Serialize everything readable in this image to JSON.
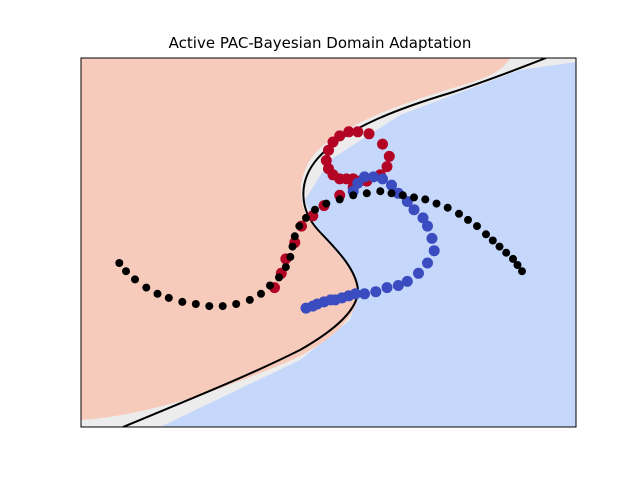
{
  "chart_data": {
    "type": "scatter",
    "title": "Active PAC-Bayesian Domain Adaptation",
    "xlabel": "",
    "ylabel": "",
    "axes_ticks": "none",
    "grid": false,
    "legend": "none",
    "regions": [
      {
        "class": "red",
        "color": "#f7cbbc"
      },
      {
        "class": "blue",
        "color": "#c5d7fb"
      },
      {
        "class": "uncertain",
        "color": "#ececec"
      }
    ],
    "decision_boundary": {
      "color": "#000000",
      "shape": "S-shaped curve"
    },
    "series": [
      {
        "color": "#b40426",
        "points": [
          [
            0.11,
            0.08
          ],
          [
            0.14,
            0.15
          ],
          [
            0.16,
            0.22
          ],
          [
            0.2,
            0.3
          ],
          [
            0.23,
            0.38
          ],
          [
            0.28,
            0.43
          ],
          [
            0.33,
            0.48
          ],
          [
            0.4,
            0.53
          ],
          [
            0.46,
            0.57
          ],
          [
            0.52,
            0.6
          ],
          [
            0.58,
            0.63
          ],
          [
            0.61,
            0.67
          ],
          [
            0.62,
            0.72
          ],
          [
            0.59,
            0.78
          ],
          [
            0.53,
            0.83
          ],
          [
            0.48,
            0.84
          ],
          [
            0.44,
            0.84
          ],
          [
            0.4,
            0.82
          ],
          [
            0.37,
            0.79
          ],
          [
            0.35,
            0.75
          ],
          [
            0.34,
            0.7
          ],
          [
            0.35,
            0.66
          ],
          [
            0.37,
            0.63
          ],
          [
            0.4,
            0.61
          ],
          [
            0.43,
            0.61
          ],
          [
            0.46,
            0.61
          ],
          [
            0.49,
            0.6
          ],
          [
            0.52,
            0.6
          ]
        ]
      },
      {
        "color": "#3b4cc0",
        "points": [
          [
            0.46,
            0.55
          ],
          [
            0.48,
            0.59
          ],
          [
            0.51,
            0.62
          ],
          [
            0.55,
            0.62
          ],
          [
            0.59,
            0.61
          ],
          [
            0.63,
            0.58
          ],
          [
            0.66,
            0.54
          ],
          [
            0.7,
            0.5
          ],
          [
            0.73,
            0.46
          ],
          [
            0.77,
            0.42
          ],
          [
            0.79,
            0.38
          ],
          [
            0.81,
            0.32
          ],
          [
            0.82,
            0.26
          ],
          [
            0.79,
            0.2
          ],
          [
            0.75,
            0.15
          ],
          [
            0.7,
            0.11
          ],
          [
            0.66,
            0.09
          ],
          [
            0.61,
            0.08
          ],
          [
            0.56,
            0.06
          ],
          [
            0.51,
            0.05
          ],
          [
            0.47,
            0.05
          ],
          [
            0.44,
            0.04
          ],
          [
            0.41,
            0.03
          ],
          [
            0.38,
            0.02
          ],
          [
            0.36,
            0.02
          ],
          [
            0.33,
            0.01
          ],
          [
            0.3,
            0.0
          ],
          [
            0.28,
            -0.01
          ],
          [
            0.25,
            -0.02
          ]
        ]
      },
      {
        "color": "#000000",
        "points": [
          [
            -0.58,
            0.2
          ],
          [
            -0.55,
            0.16
          ],
          [
            -0.51,
            0.12
          ],
          [
            -0.46,
            0.08
          ],
          [
            -0.41,
            0.05
          ],
          [
            -0.36,
            0.03
          ],
          [
            -0.3,
            0.01
          ],
          [
            -0.24,
            0.0
          ],
          [
            -0.18,
            -0.01
          ],
          [
            -0.12,
            -0.01
          ],
          [
            -0.06,
            0.0
          ],
          [
            0.0,
            0.02
          ],
          [
            0.05,
            0.05
          ],
          [
            0.09,
            0.09
          ],
          [
            0.13,
            0.13
          ],
          [
            0.16,
            0.18
          ],
          [
            0.18,
            0.23
          ],
          [
            0.19,
            0.28
          ],
          [
            0.2,
            0.33
          ],
          [
            0.22,
            0.38
          ],
          [
            0.25,
            0.42
          ],
          [
            0.29,
            0.46
          ],
          [
            0.34,
            0.49
          ],
          [
            0.4,
            0.51
          ],
          [
            0.46,
            0.53
          ],
          [
            0.52,
            0.54
          ],
          [
            0.58,
            0.55
          ],
          [
            0.63,
            0.54
          ],
          [
            0.68,
            0.53
          ],
          [
            0.73,
            0.52
          ],
          [
            0.78,
            0.51
          ],
          [
            0.83,
            0.49
          ],
          [
            0.88,
            0.47
          ],
          [
            0.93,
            0.44
          ],
          [
            0.97,
            0.41
          ],
          [
            1.01,
            0.38
          ],
          [
            1.05,
            0.34
          ],
          [
            1.08,
            0.31
          ],
          [
            1.11,
            0.28
          ],
          [
            1.14,
            0.25
          ],
          [
            1.17,
            0.22
          ],
          [
            1.19,
            0.19
          ],
          [
            1.21,
            0.16
          ]
        ]
      }
    ]
  }
}
